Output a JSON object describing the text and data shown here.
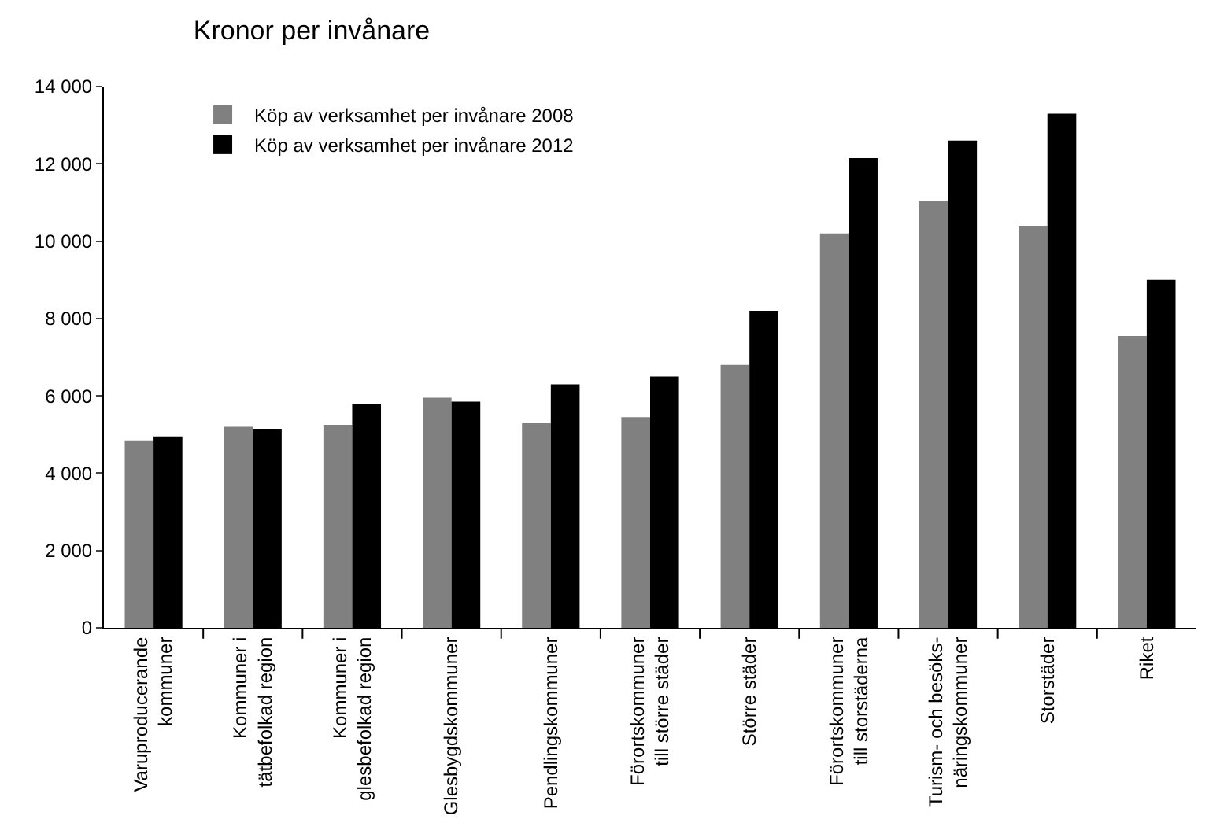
{
  "chart_data": {
    "type": "bar",
    "title": "Kronor per invånare",
    "categories": [
      "Varuproducerande\nkommuner",
      "Kommuner i\ntätbefolkad region",
      "Kommuner i\nglesbefolkad region",
      "Glesbygdskommuner",
      "Pendlingskommuner",
      "Förortskommuner\ntill större städer",
      "Större städer",
      "Förortskommuner\ntill storstäderna",
      "Turism- och besöks-\nnäringskommuner",
      "Storstäder",
      "Riket"
    ],
    "series": [
      {
        "name": "Köp av verksamhet per invånare 2008",
        "color": "#808080",
        "values": [
          4850,
          5200,
          5250,
          5950,
          5300,
          5450,
          6800,
          10200,
          11050,
          10400,
          7550
        ]
      },
      {
        "name": "Köp av verksamhet per invånare 2012",
        "color": "#000000",
        "values": [
          4950,
          5150,
          5800,
          5850,
          6300,
          6500,
          8200,
          12150,
          12600,
          13300,
          9000
        ]
      }
    ],
    "ylim": [
      0,
      14000
    ],
    "yticks": [
      {
        "value": 0,
        "label": "0"
      },
      {
        "value": 2000,
        "label": "2 000"
      },
      {
        "value": 4000,
        "label": "4 000"
      },
      {
        "value": 6000,
        "label": "6 000"
      },
      {
        "value": 8000,
        "label": "8 000"
      },
      {
        "value": 10000,
        "label": "10 000"
      },
      {
        "value": 12000,
        "label": "12 000"
      },
      {
        "value": 14000,
        "label": "14 000"
      }
    ],
    "grid": false,
    "legend": "top left"
  }
}
